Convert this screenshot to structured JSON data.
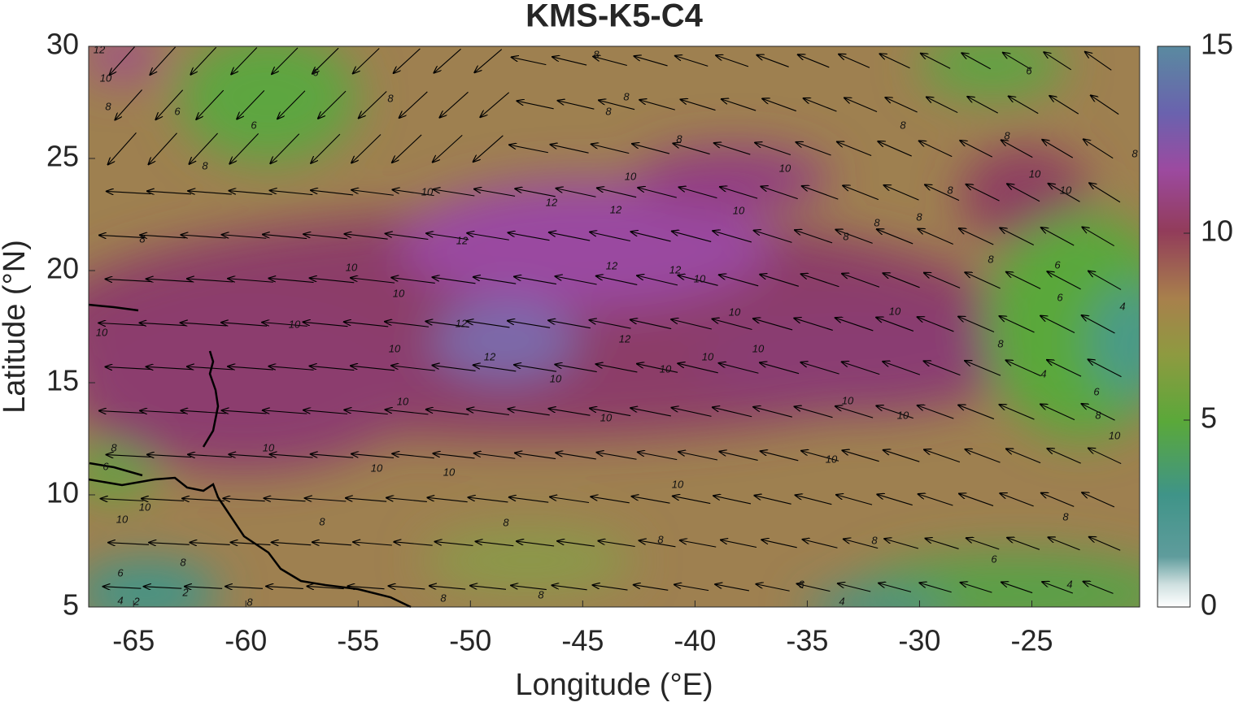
{
  "map": {
    "title": "KMS-K5-C4",
    "x_label": "Longitude (°E)",
    "y_label": "Latitude (°N)",
    "xlim": [
      -67,
      -20.2
    ],
    "ylim": [
      5,
      30
    ],
    "xticks": [
      -65,
      -60,
      -55,
      -50,
      -45,
      -40,
      -35,
      -30,
      -25
    ],
    "yticks": [
      5,
      10,
      15,
      20,
      25,
      30
    ],
    "colorbar": {
      "lim": [
        0,
        15
      ],
      "ticks": [
        0,
        5,
        10,
        15
      ]
    },
    "contour_labels": [
      12,
      10,
      8,
      6,
      6,
      6,
      8,
      8,
      8,
      8,
      8,
      8,
      8,
      6,
      8,
      8,
      8,
      10,
      10,
      10,
      12,
      12,
      12,
      10,
      8,
      8,
      8,
      10,
      10,
      8,
      8,
      6,
      6,
      10,
      12,
      12,
      10,
      10,
      10,
      12,
      10,
      10,
      10,
      12,
      12,
      10,
      10,
      10,
      10,
      10,
      8,
      4,
      4,
      6,
      10,
      10,
      10,
      10,
      8,
      10,
      10,
      8,
      6,
      10,
      10,
      10,
      10,
      10,
      8,
      10,
      8,
      8,
      8,
      8,
      8,
      6,
      6,
      2,
      2,
      4,
      6,
      4,
      8,
      8,
      8,
      4
    ]
  }
}
